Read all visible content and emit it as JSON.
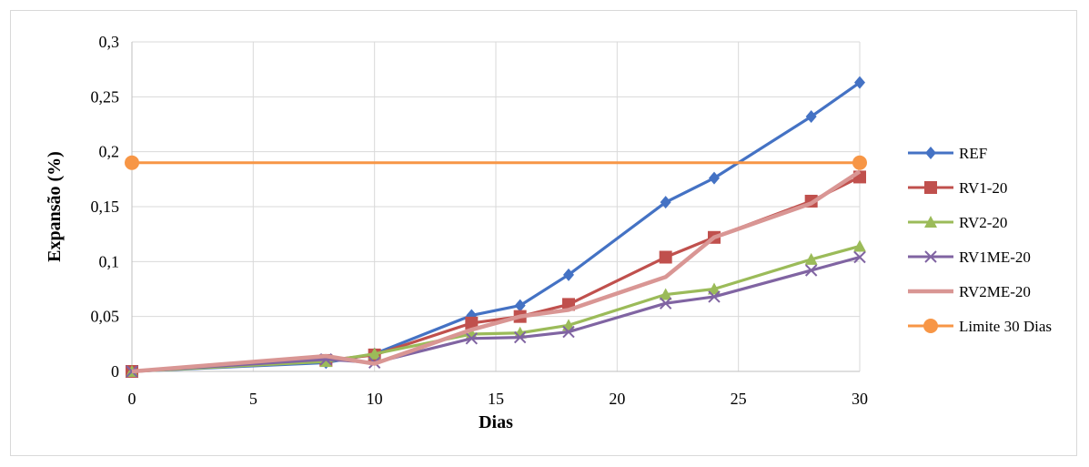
{
  "chart_data": {
    "type": "line",
    "title": "",
    "xlabel": "Dias",
    "ylabel": "Expansão (%)",
    "xlim": [
      0,
      30
    ],
    "ylim": [
      0,
      0.3
    ],
    "x_ticks": [
      "0",
      "5",
      "10",
      "15",
      "20",
      "25",
      "30"
    ],
    "y_ticks": [
      "0",
      "0,05",
      "0,1",
      "0,15",
      "0,2",
      "0,25",
      "0,3"
    ],
    "grid": true,
    "legend_position": "right",
    "series": [
      {
        "name": "REF",
        "color": "#4472c4",
        "marker": "diamond",
        "x": [
          0,
          8,
          10,
          14,
          16,
          18,
          22,
          24,
          28,
          30
        ],
        "y": [
          0,
          0.008,
          0.016,
          0.051,
          0.06,
          0.088,
          0.154,
          0.176,
          0.232,
          0.263
        ]
      },
      {
        "name": "RV1-20",
        "color": "#c0504d",
        "marker": "square",
        "x": [
          0,
          8,
          10,
          14,
          16,
          18,
          22,
          24,
          28,
          30
        ],
        "y": [
          0,
          0.01,
          0.015,
          0.044,
          0.05,
          0.061,
          0.104,
          0.122,
          0.155,
          0.177
        ]
      },
      {
        "name": "RV2-20",
        "color": "#9bbb59",
        "marker": "triangle",
        "x": [
          0,
          8,
          10,
          14,
          16,
          18,
          22,
          24,
          28,
          30
        ],
        "y": [
          0,
          0.009,
          0.016,
          0.034,
          0.035,
          0.042,
          0.07,
          0.075,
          0.102,
          0.114
        ]
      },
      {
        "name": "RV1ME-20",
        "color": "#8064a2",
        "marker": "x",
        "x": [
          0,
          8,
          10,
          14,
          16,
          18,
          22,
          24,
          28,
          30
        ],
        "y": [
          0,
          0.011,
          0.008,
          0.03,
          0.031,
          0.036,
          0.062,
          0.068,
          0.092,
          0.104
        ]
      },
      {
        "name": "RV2ME-20",
        "color": "#d99694",
        "marker": "none",
        "x": [
          0,
          8,
          10,
          14,
          16,
          18,
          22,
          24,
          28,
          30
        ],
        "y": [
          0,
          0.014,
          0.007,
          0.038,
          0.05,
          0.056,
          0.086,
          0.122,
          0.153,
          0.182
        ]
      },
      {
        "name": "Limite 30 Dias",
        "color": "#f79646",
        "marker": "circle",
        "x": [
          0,
          30
        ],
        "y": [
          0.19,
          0.19
        ]
      }
    ]
  }
}
